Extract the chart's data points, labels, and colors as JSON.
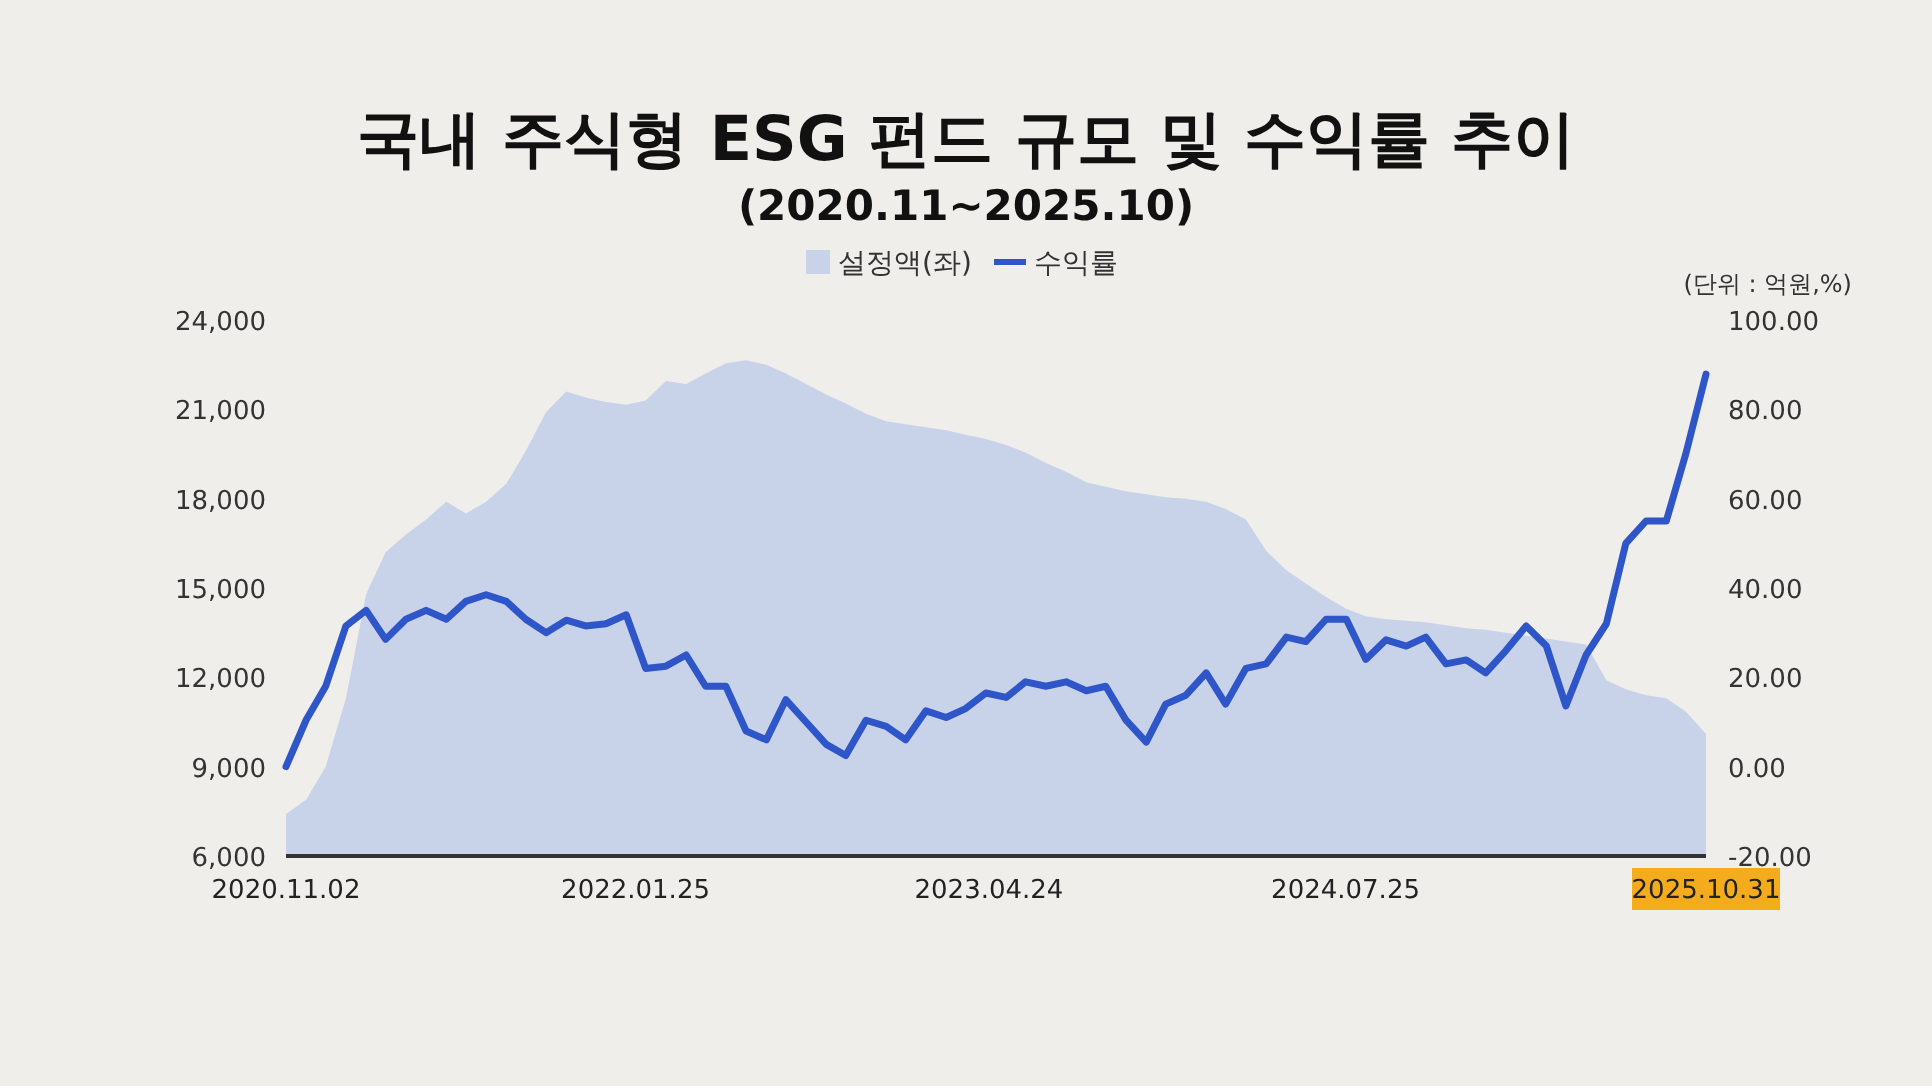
{
  "chart_data": {
    "type": "line",
    "title": "국내 주식형 ESG 펀드 규모 및 수익률 추이",
    "subtitle": "(2020.11~2025.10)",
    "annotations": [
      "(단위 : 억원,%)"
    ],
    "legend": "top",
    "x": [
      "2020-11-02",
      "2020-11-28",
      "2020-12-23",
      "2021-01-18",
      "2021-02-13",
      "2021-03-10",
      "2021-04-05",
      "2021-05-01",
      "2021-05-27",
      "2021-06-21",
      "2021-07-17",
      "2021-08-12",
      "2021-09-06",
      "2021-10-02",
      "2021-10-28",
      "2021-11-22",
      "2021-12-18",
      "2022-01-13",
      "2022-02-07",
      "2022-03-05",
      "2022-03-31",
      "2022-04-25",
      "2022-05-21",
      "2022-06-16",
      "2022-07-12",
      "2022-08-06",
      "2022-09-01",
      "2022-09-27",
      "2022-10-22",
      "2022-11-17",
      "2022-12-13",
      "2023-01-07",
      "2023-02-02",
      "2023-02-28",
      "2023-03-25",
      "2023-04-20",
      "2023-05-16",
      "2023-06-10",
      "2023-07-06",
      "2023-08-01",
      "2023-08-27",
      "2023-09-21",
      "2023-10-17",
      "2023-11-12",
      "2023-12-07",
      "2024-01-02",
      "2024-01-28",
      "2024-02-22",
      "2024-03-19",
      "2024-04-14",
      "2024-05-10",
      "2024-06-04",
      "2024-06-30",
      "2024-07-26",
      "2024-08-20",
      "2024-09-15",
      "2024-10-11",
      "2024-11-05",
      "2024-12-01",
      "2024-12-27",
      "2025-01-21",
      "2025-02-16",
      "2025-03-14",
      "2025-04-09",
      "2025-05-04",
      "2025-05-30",
      "2025-06-25",
      "2025-07-20",
      "2025-08-15",
      "2025-09-10",
      "2025-10-05",
      "2025-10-31"
    ],
    "series": [
      {
        "name": "설정액(좌)",
        "type": "area",
        "color": "#c8d3ea",
        "values": [
          7400,
          7900,
          9000,
          11300,
          14800,
          16200,
          16800,
          17300,
          17900,
          17500,
          17900,
          18500,
          19600,
          20900,
          21600,
          21400,
          21250,
          21150,
          21300,
          21950,
          21850,
          22200,
          22550,
          22650,
          22500,
          22200,
          21850,
          21500,
          21200,
          20850,
          20600,
          20500,
          20400,
          20300,
          20150,
          20000,
          19800,
          19550,
          19200,
          18900,
          18550,
          18400,
          18250,
          18150,
          18050,
          18000,
          17900,
          17650,
          17300,
          16250,
          15600,
          15150,
          14700,
          14300,
          14050,
          13950,
          13900,
          13850,
          13750,
          13650,
          13600,
          13500,
          13400,
          13300,
          13200,
          13100,
          11900,
          11600,
          11400,
          11300,
          10850,
          10100
        ]
      },
      {
        "name": "수익률",
        "axis": "y2",
        "color": "#2f56c9",
        "values": [
          0,
          10.5,
          18,
          31.5,
          35,
          28.5,
          33,
          35,
          33,
          37,
          38.5,
          37,
          33,
          30,
          32.8,
          31.5,
          32,
          34,
          22,
          22.5,
          25,
          18,
          18,
          8,
          6,
          15,
          10,
          5,
          2.5,
          10.4,
          9,
          6,
          12.5,
          11,
          13,
          16.5,
          15.5,
          19,
          18,
          19,
          17,
          18,
          10.4,
          5.5,
          14,
          16,
          21,
          14,
          22,
          23,
          29,
          28,
          33,
          33,
          24,
          28.4,
          27,
          29,
          23,
          23.9,
          21,
          26,
          31.5,
          27,
          13.6,
          25,
          32,
          50,
          55,
          55,
          70,
          87.9
        ]
      }
    ],
    "xlim": [
      "2020-11-02",
      "2025-10-31"
    ],
    "xticks": [
      {
        "value": "2020-11-02",
        "label": "2020.11.02"
      },
      {
        "value": "2022-01-25",
        "label": "2022.01.25"
      },
      {
        "value": "2023-04-24",
        "label": "2023.04.24"
      },
      {
        "value": "2024-07-25",
        "label": "2024.07.25"
      },
      {
        "value": "2025-10-31",
        "label": "2025.10.31"
      }
    ],
    "ylim": [
      6000,
      24000
    ],
    "yticks": [
      {
        "value": 6000,
        "label": "6,000"
      },
      {
        "value": 9000,
        "label": "9,000"
      },
      {
        "value": 12000,
        "label": "12,000"
      },
      {
        "value": 15000,
        "label": "15,000"
      },
      {
        "value": 18000,
        "label": "18,000"
      },
      {
        "value": 21000,
        "label": "21,000"
      },
      {
        "value": 24000,
        "label": "24,000"
      }
    ],
    "y2lim": [
      -20,
      100
    ],
    "y2ticks": [
      {
        "value": -20,
        "label": "-20.00"
      },
      {
        "value": 0,
        "label": "0.00"
      },
      {
        "value": 20,
        "label": "20.00"
      },
      {
        "value": 40,
        "label": "40.00"
      },
      {
        "value": 60,
        "label": "60.00"
      },
      {
        "value": 80,
        "label": "80.00"
      },
      {
        "value": 100,
        "label": "100.00"
      }
    ]
  }
}
